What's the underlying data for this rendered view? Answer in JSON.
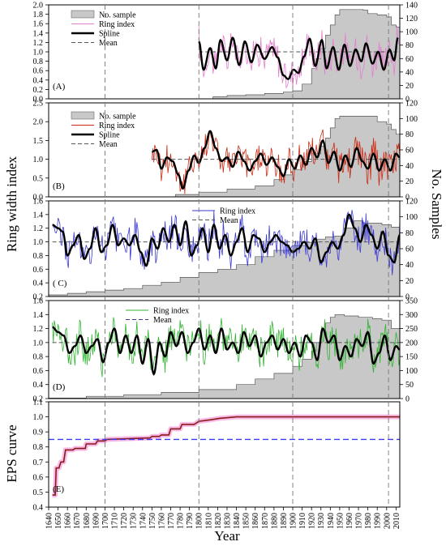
{
  "figure": {
    "y_label_left": "Ring width index",
    "y_label_right": "No. Samples",
    "y_label_eps": "EPS curve",
    "x_label": "Year"
  },
  "colors": {
    "sample_fill": "#c8c8c8",
    "sample_edge": "#555555",
    "spline": "#000000",
    "mean": "#555555",
    "A": "#e57fd0",
    "B": "#cc2a14",
    "C": "#3a3ad6",
    "D": "#30b530",
    "E_line": "#8b1a1a",
    "E_band": "#f6b3e3",
    "E_threshold": "#3a3aff"
  },
  "chart_data": [
    {
      "panel": "A",
      "type": "line",
      "label": "(A)",
      "x_range": [
        1640,
        2014
      ],
      "ylim": [
        0,
        2.0
      ],
      "y2lim": [
        0,
        140
      ],
      "yticks": [
        "0.0",
        "0.2",
        "0.4",
        "0.6",
        "0.8",
        "1.0",
        "1.2",
        "1.4",
        "1.6",
        "1.8",
        "2.0"
      ],
      "y2ticks": [
        "0",
        "20",
        "40",
        "60",
        "80",
        "100",
        "120",
        "140"
      ],
      "legend": {
        "position": "top-left",
        "items": [
          "No. sample",
          "Ring index",
          "Spline",
          "Mean"
        ]
      },
      "start_year": 1800,
      "mean": 1.0,
      "spline": {
        "x": [
          1800,
          1805,
          1812,
          1818,
          1823,
          1830,
          1836,
          1843,
          1849,
          1856,
          1862,
          1870,
          1878,
          1884,
          1890,
          1895,
          1901,
          1906,
          1912,
          1918,
          1924,
          1931,
          1936,
          1943,
          1949,
          1955,
          1961,
          1967,
          1973,
          1978,
          1985,
          1991,
          1997,
          2003,
          2008,
          2012
        ],
        "y": [
          1.22,
          0.62,
          1.08,
          0.65,
          1.25,
          0.82,
          1.3,
          0.72,
          1.22,
          0.78,
          1.15,
          0.85,
          1.1,
          0.88,
          0.5,
          0.42,
          0.62,
          0.55,
          0.9,
          1.28,
          0.7,
          1.25,
          0.65,
          1.1,
          0.62,
          1.15,
          0.7,
          1.05,
          0.8,
          1.18,
          0.75,
          1.0,
          0.62,
          1.05,
          0.82,
          1.3
        ]
      },
      "samples": {
        "x": [
          1800,
          1815,
          1830,
          1850,
          1870,
          1890,
          1900,
          1910,
          1920,
          1925,
          1930,
          1935,
          1940,
          1945,
          1950,
          1960,
          1970,
          1975,
          1980,
          1990,
          2000,
          2005,
          2010,
          2014
        ],
        "y": [
          0,
          3,
          5,
          6,
          8,
          10,
          12,
          22,
          45,
          60,
          75,
          95,
          110,
          125,
          133,
          133,
          133,
          132,
          127,
          125,
          122,
          110,
          107,
          100
        ]
      }
    },
    {
      "panel": "B",
      "type": "line",
      "label": "(B)",
      "x_range": [
        1640,
        2014
      ],
      "ylim": [
        0,
        2.5
      ],
      "y2lim": [
        0,
        120
      ],
      "yticks": [
        "0.0",
        "0.5",
        "1.0",
        "1.5",
        "2.0",
        "2.5"
      ],
      "y2ticks": [
        "0",
        "20",
        "40",
        "60",
        "80",
        "100",
        "120"
      ],
      "legend": {
        "position": "top-left",
        "items": [
          "No. sample",
          "Ring index",
          "Spline",
          "Mean"
        ]
      },
      "start_year": 1750,
      "mean": 1.0,
      "spline": {
        "x": [
          1750,
          1755,
          1760,
          1766,
          1772,
          1778,
          1783,
          1789,
          1795,
          1800,
          1806,
          1812,
          1818,
          1824,
          1830,
          1836,
          1842,
          1848,
          1854,
          1860,
          1866,
          1872,
          1878,
          1884,
          1890,
          1896,
          1902,
          1908,
          1914,
          1920,
          1926,
          1932,
          1938,
          1944,
          1950,
          1956,
          1962,
          1968,
          1974,
          1980,
          1986,
          1992,
          1998,
          2004,
          2010,
          2014
        ],
        "y": [
          1.2,
          1.25,
          0.75,
          1.05,
          0.95,
          0.6,
          0.22,
          0.7,
          1.1,
          0.9,
          1.3,
          1.75,
          1.3,
          0.95,
          1.05,
          0.8,
          1.2,
          0.95,
          0.7,
          0.95,
          1.15,
          0.85,
          1.05,
          0.8,
          0.55,
          1.0,
          0.75,
          1.1,
          0.85,
          1.3,
          1.05,
          1.5,
          0.9,
          1.2,
          0.7,
          1.1,
          0.8,
          1.3,
          0.95,
          0.75,
          1.15,
          0.7,
          1.0,
          0.7,
          1.15,
          1.05
        ]
      },
      "samples": {
        "x": [
          1750,
          1775,
          1800,
          1830,
          1860,
          1880,
          1890,
          1900,
          1910,
          1920,
          1930,
          1935,
          1940,
          1945,
          1950,
          1960,
          1970,
          1990,
          2000,
          2005,
          2010,
          2014
        ],
        "y": [
          0,
          3,
          6,
          10,
          14,
          22,
          28,
          35,
          45,
          55,
          65,
          75,
          88,
          100,
          103,
          103,
          103,
          96,
          93,
          86,
          80,
          80
        ]
      }
    },
    {
      "panel": "C",
      "type": "line",
      "label": "( C)",
      "x_range": [
        1640,
        2014
      ],
      "ylim": [
        0.2,
        1.6
      ],
      "y2lim": [
        0,
        120
      ],
      "yticks": [
        "0.2",
        "0.4",
        "0.6",
        "0.8",
        "1.0",
        "1.2",
        "1.4",
        "1.6"
      ],
      "y2ticks": [
        "0",
        "20",
        "40",
        "60",
        "80",
        "100",
        "120"
      ],
      "legend": {
        "position": "top-center",
        "items": [
          "Ring index",
          "Mean"
        ]
      },
      "start_year": 1644,
      "mean": 1.0,
      "spline": {
        "x": [
          1644,
          1650,
          1655,
          1660,
          1666,
          1672,
          1678,
          1684,
          1690,
          1696,
          1702,
          1708,
          1714,
          1720,
          1726,
          1732,
          1738,
          1744,
          1750,
          1756,
          1762,
          1768,
          1774,
          1780,
          1786,
          1792,
          1798,
          1804,
          1810,
          1816,
          1822,
          1828,
          1834,
          1840,
          1846,
          1852,
          1858,
          1864,
          1870,
          1876,
          1882,
          1888,
          1894,
          1900,
          1906,
          1912,
          1918,
          1924,
          1930,
          1936,
          1942,
          1948,
          1954,
          1960,
          1966,
          1972,
          1978,
          1984,
          1990,
          1996,
          2002,
          2008,
          2014
        ],
        "y": [
          1.25,
          1.2,
          1.15,
          0.8,
          0.95,
          1.1,
          0.75,
          0.9,
          1.2,
          0.85,
          0.95,
          1.25,
          0.95,
          1.05,
          0.95,
          1.1,
          0.85,
          0.65,
          1.05,
          0.9,
          1.2,
          1.0,
          1.25,
          0.95,
          1.3,
          0.8,
          0.95,
          1.2,
          0.85,
          1.25,
          0.9,
          1.1,
          0.8,
          1.0,
          1.2,
          0.85,
          1.1,
          1.05,
          0.85,
          1.0,
          1.1,
          1.0,
          0.95,
          0.85,
          0.9,
          1.0,
          0.9,
          1.05,
          0.7,
          0.85,
          1.0,
          0.9,
          1.1,
          1.4,
          1.2,
          1.0,
          1.25,
          1.1,
          0.9,
          1.15,
          0.8,
          0.7,
          1.1
        ]
      },
      "samples": {
        "x": [
          1640,
          1660,
          1680,
          1700,
          1720,
          1740,
          1760,
          1780,
          1800,
          1820,
          1840,
          1860,
          1880,
          1900,
          1915,
          1925,
          1935,
          1945,
          1955,
          1965,
          1975,
          1985,
          1995,
          2005,
          2014
        ],
        "y": [
          2,
          4,
          6,
          8,
          10,
          14,
          18,
          24,
          30,
          34,
          40,
          50,
          58,
          64,
          68,
          72,
          75,
          76,
          86,
          95,
          92,
          92,
          90,
          87,
          86
        ]
      }
    },
    {
      "panel": "D",
      "type": "line",
      "label": "(D)",
      "x_range": [
        1640,
        2014
      ],
      "ylim": [
        0.2,
        1.6
      ],
      "y2lim": [
        0,
        350
      ],
      "yticks": [
        "0.2",
        "0.4",
        "0.6",
        "0.8",
        "1.0",
        "1.2",
        "1.4",
        "1.6"
      ],
      "y2ticks": [
        "0",
        "50",
        "100",
        "150",
        "200",
        "250",
        "300",
        "350"
      ],
      "legend": {
        "position": "top-center",
        "items": [
          "Ring index",
          "Mean"
        ]
      },
      "start_year": 1644,
      "mean": 1.0,
      "spline": {
        "x": [
          1644,
          1650,
          1656,
          1662,
          1668,
          1674,
          1680,
          1686,
          1692,
          1698,
          1704,
          1710,
          1716,
          1722,
          1728,
          1734,
          1740,
          1746,
          1752,
          1758,
          1764,
          1770,
          1776,
          1782,
          1788,
          1794,
          1800,
          1806,
          1812,
          1818,
          1824,
          1830,
          1836,
          1842,
          1848,
          1854,
          1860,
          1866,
          1872,
          1878,
          1884,
          1890,
          1896,
          1902,
          1908,
          1914,
          1920,
          1926,
          1932,
          1938,
          1944,
          1950,
          1956,
          1962,
          1968,
          1974,
          1980,
          1986,
          1992,
          1998,
          2004,
          2010,
          2014
        ],
        "y": [
          1.22,
          1.15,
          1.1,
          0.85,
          0.95,
          1.1,
          0.85,
          0.95,
          1.05,
          0.72,
          1.0,
          1.2,
          0.85,
          1.1,
          0.85,
          1.1,
          0.7,
          1.05,
          0.55,
          1.0,
          0.8,
          1.15,
          0.95,
          1.15,
          0.85,
          1.0,
          1.2,
          0.9,
          1.1,
          0.85,
          1.2,
          0.9,
          1.0,
          0.85,
          1.15,
          0.95,
          1.1,
          0.8,
          1.0,
          1.1,
          0.9,
          1.05,
          0.85,
          1.0,
          0.8,
          1.1,
          1.0,
          0.75,
          1.2,
          1.0,
          1.1,
          0.75,
          0.95,
          0.8,
          1.05,
          0.95,
          1.15,
          0.7,
          0.85,
          1.1,
          0.75,
          0.95,
          0.9
        ]
      },
      "samples": {
        "x": [
          1640,
          1680,
          1720,
          1760,
          1800,
          1840,
          1860,
          1880,
          1900,
          1910,
          1920,
          1925,
          1930,
          1935,
          1940,
          1945,
          1955,
          1970,
          1985,
          1995,
          2005,
          2014
        ],
        "y": [
          2,
          8,
          14,
          22,
          32,
          50,
          70,
          90,
          115,
          140,
          170,
          200,
          240,
          270,
          290,
          300,
          295,
          290,
          285,
          280,
          250,
          230
        ]
      }
    },
    {
      "panel": "E",
      "type": "line",
      "label": "(E)",
      "x_range": [
        1640,
        2014
      ],
      "ylim": [
        0.4,
        1.1
      ],
      "threshold": 0.85,
      "yticks": [
        "0.4",
        "0.5",
        "0.6",
        "0.7",
        "0.8",
        "0.9",
        "1.0",
        "1.1"
      ],
      "y_label": "EPS curve",
      "eps": {
        "x": [
          1644,
          1647,
          1648,
          1651,
          1653,
          1656,
          1658,
          1666,
          1668,
          1679,
          1680,
          1690,
          1692,
          1700,
          1702,
          1748,
          1750,
          1758,
          1760,
          1768,
          1770,
          1780,
          1782,
          1795,
          1800,
          1812,
          1822,
          1840,
          1860,
          1900,
          2014
        ],
        "y": [
          0.48,
          0.48,
          0.66,
          0.66,
          0.7,
          0.7,
          0.78,
          0.78,
          0.79,
          0.79,
          0.82,
          0.82,
          0.84,
          0.84,
          0.85,
          0.86,
          0.87,
          0.87,
          0.88,
          0.88,
          0.92,
          0.92,
          0.95,
          0.95,
          0.97,
          0.98,
          0.99,
          1.0,
          1.0,
          1.0,
          1.0
        ]
      }
    }
  ],
  "x_axis": {
    "label": "Year",
    "ticks": [
      "1640",
      "1650",
      "1660",
      "1670",
      "1680",
      "1690",
      "1700",
      "1710",
      "1720",
      "1730",
      "1740",
      "1750",
      "1760",
      "1770",
      "1780",
      "1790",
      "1800",
      "1810",
      "1820",
      "1830",
      "1840",
      "1850",
      "1860",
      "1870",
      "1880",
      "1890",
      "1900",
      "1910",
      "1920",
      "1930",
      "1940",
      "1950",
      "1960",
      "1970",
      "1980",
      "1990",
      "2000",
      "2010"
    ]
  },
  "reference_years": [
    "1700",
    "1800",
    "1900",
    "2002"
  ]
}
